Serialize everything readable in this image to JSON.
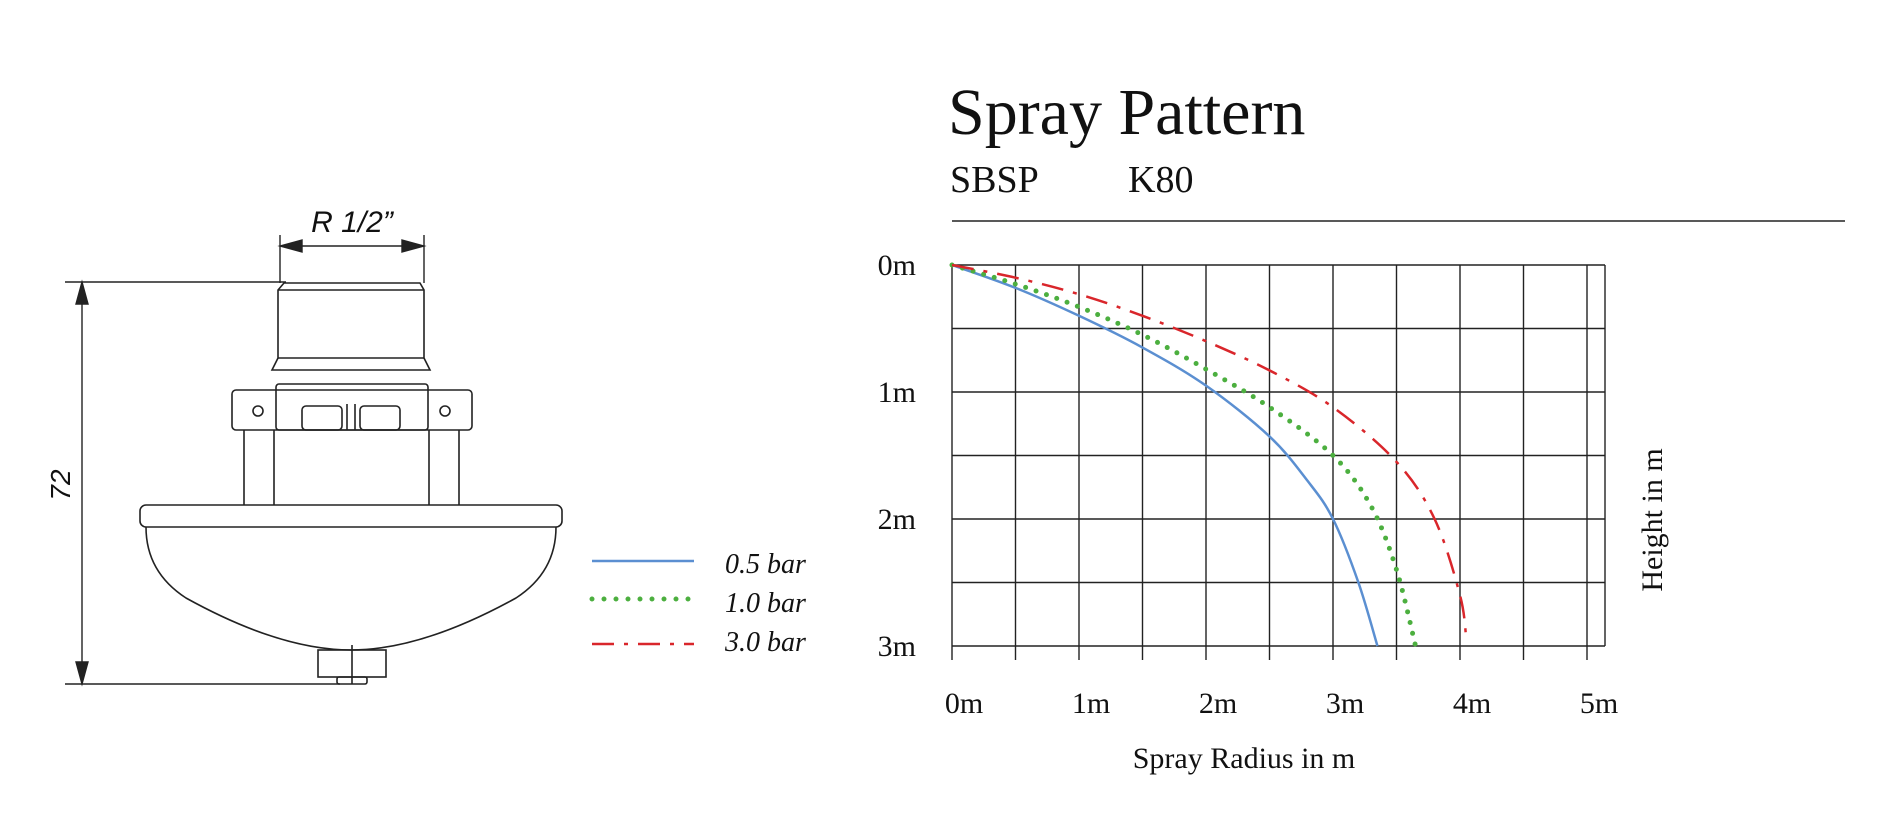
{
  "drawing": {
    "thread_label": "R 1/2”",
    "height_label": "72"
  },
  "legend": [
    {
      "label": "0.5 bar",
      "color": "#5b8fd1",
      "style": "solid"
    },
    {
      "label": "1.0 bar",
      "color": "#4caf3f",
      "style": "dotted"
    },
    {
      "label": "3.0 bar",
      "color": "#d9262b",
      "style": "dash-dot"
    }
  ],
  "chart_data": {
    "type": "line",
    "title": "Spray Pattern",
    "subtitle_model": "SBSP",
    "subtitle_k": "K80",
    "xlabel": "Spray Radius in m",
    "ylabel": "Height in m",
    "x_ticks": [
      "0m",
      "1m",
      "2m",
      "3m",
      "4m",
      "5m"
    ],
    "y_ticks": [
      "0m",
      "1m",
      "2m",
      "3m"
    ],
    "xlim": [
      0,
      5
    ],
    "ylim": [
      0,
      3
    ],
    "y_inverted": true,
    "grid": true,
    "series": [
      {
        "name": "0.5 bar",
        "color": "#5b8fd1",
        "style": "solid",
        "x": [
          0,
          0.5,
          1.0,
          1.5,
          2.0,
          2.5,
          2.8,
          3.0,
          3.2,
          3.35
        ],
        "y": [
          0,
          0.18,
          0.4,
          0.65,
          0.95,
          1.35,
          1.7,
          2.0,
          2.5,
          3.0
        ]
      },
      {
        "name": "1.0 bar",
        "color": "#4caf3f",
        "style": "dotted",
        "x": [
          0,
          0.5,
          1.0,
          1.5,
          2.0,
          2.5,
          3.0,
          3.3,
          3.5,
          3.65
        ],
        "y": [
          0,
          0.15,
          0.33,
          0.55,
          0.82,
          1.12,
          1.5,
          1.9,
          2.4,
          3.0
        ]
      },
      {
        "name": "3.0 bar",
        "color": "#d9262b",
        "style": "dash-dot",
        "x": [
          0,
          0.5,
          1.0,
          1.5,
          2.0,
          2.5,
          3.0,
          3.5,
          3.8,
          4.0,
          4.05
        ],
        "y": [
          0,
          0.1,
          0.23,
          0.4,
          0.6,
          0.83,
          1.12,
          1.55,
          2.0,
          2.6,
          2.95
        ]
      }
    ]
  }
}
